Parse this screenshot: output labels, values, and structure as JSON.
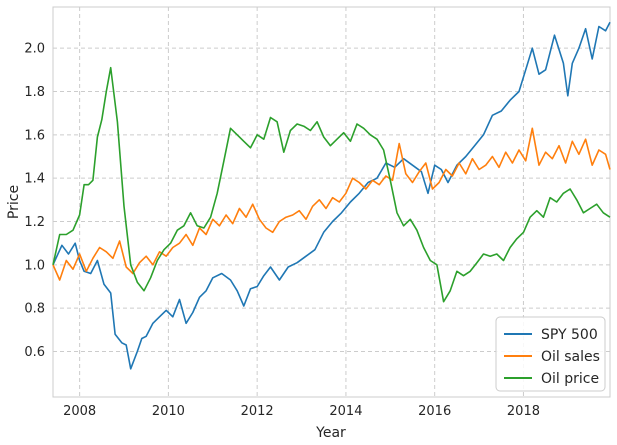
{
  "chart_data": {
    "type": "line",
    "title": "",
    "xlabel": "Year",
    "ylabel": "Price",
    "xlim": [
      2007.4,
      2019.95
    ],
    "ylim": [
      0.39,
      2.19
    ],
    "xticks": [
      2008,
      2010,
      2012,
      2014,
      2016,
      2018
    ],
    "xtick_labels": [
      "2008",
      "2010",
      "2012",
      "2014",
      "2016",
      "2018"
    ],
    "yticks": [
      0.6,
      0.8,
      1.0,
      1.2,
      1.4,
      1.6,
      1.8,
      2.0
    ],
    "ytick_labels": [
      "0.6",
      "0.8",
      "1.0",
      "1.2",
      "1.4",
      "1.6",
      "1.8",
      "2.0"
    ],
    "grid": true,
    "legend_position": "bottom-right",
    "series": [
      {
        "name": "SPY 500",
        "color": "#1f77b4",
        "x": [
          2007.4,
          2007.6,
          2007.75,
          2007.9,
          2008.0,
          2008.1,
          2008.25,
          2008.4,
          2008.55,
          2008.7,
          2008.8,
          2008.95,
          2009.05,
          2009.15,
          2009.3,
          2009.4,
          2009.5,
          2009.65,
          2009.8,
          2009.95,
          2010.1,
          2010.25,
          2010.4,
          2010.55,
          2010.7,
          2010.85,
          2011.0,
          2011.2,
          2011.4,
          2011.55,
          2011.7,
          2011.85,
          2012.0,
          2012.15,
          2012.3,
          2012.5,
          2012.7,
          2012.9,
          2013.1,
          2013.3,
          2013.5,
          2013.7,
          2013.9,
          2014.1,
          2014.3,
          2014.5,
          2014.7,
          2014.9,
          2015.1,
          2015.3,
          2015.5,
          2015.7,
          2015.85,
          2016.0,
          2016.15,
          2016.3,
          2016.5,
          2016.7,
          2016.9,
          2017.1,
          2017.3,
          2017.5,
          2017.7,
          2017.9,
          2018.05,
          2018.2,
          2018.35,
          2018.5,
          2018.7,
          2018.9,
          2019.0,
          2019.1,
          2019.25,
          2019.4,
          2019.55,
          2019.7,
          2019.85,
          2019.95
        ],
        "values": [
          1.0,
          1.09,
          1.05,
          1.1,
          1.02,
          0.97,
          0.96,
          1.02,
          0.91,
          0.87,
          0.68,
          0.64,
          0.63,
          0.52,
          0.6,
          0.66,
          0.67,
          0.73,
          0.76,
          0.79,
          0.76,
          0.84,
          0.73,
          0.78,
          0.85,
          0.88,
          0.94,
          0.96,
          0.93,
          0.88,
          0.81,
          0.89,
          0.9,
          0.95,
          0.99,
          0.93,
          0.99,
          1.01,
          1.04,
          1.07,
          1.15,
          1.2,
          1.24,
          1.29,
          1.33,
          1.38,
          1.4,
          1.47,
          1.45,
          1.49,
          1.46,
          1.43,
          1.33,
          1.46,
          1.44,
          1.38,
          1.46,
          1.5,
          1.55,
          1.6,
          1.69,
          1.71,
          1.76,
          1.8,
          1.9,
          2.0,
          1.88,
          1.9,
          2.06,
          1.93,
          1.78,
          1.93,
          2.0,
          2.09,
          1.95,
          2.1,
          2.08,
          2.12
        ]
      },
      {
        "name": "Oil sales",
        "color": "#ff7f0e",
        "x": [
          2007.4,
          2007.55,
          2007.7,
          2007.85,
          2008.0,
          2008.15,
          2008.3,
          2008.45,
          2008.6,
          2008.75,
          2008.9,
          2009.05,
          2009.2,
          2009.35,
          2009.5,
          2009.65,
          2009.8,
          2009.95,
          2010.1,
          2010.25,
          2010.4,
          2010.55,
          2010.7,
          2010.85,
          2011.0,
          2011.15,
          2011.3,
          2011.45,
          2011.6,
          2011.75,
          2011.9,
          2012.05,
          2012.2,
          2012.35,
          2012.5,
          2012.65,
          2012.8,
          2012.95,
          2013.1,
          2013.25,
          2013.4,
          2013.55,
          2013.7,
          2013.85,
          2014.0,
          2014.15,
          2014.3,
          2014.45,
          2014.6,
          2014.75,
          2014.9,
          2015.05,
          2015.2,
          2015.35,
          2015.5,
          2015.65,
          2015.8,
          2015.95,
          2016.1,
          2016.25,
          2016.4,
          2016.55,
          2016.7,
          2016.85,
          2017.0,
          2017.15,
          2017.3,
          2017.45,
          2017.6,
          2017.75,
          2017.9,
          2018.05,
          2018.2,
          2018.35,
          2018.5,
          2018.65,
          2018.8,
          2018.95,
          2019.1,
          2019.25,
          2019.4,
          2019.55,
          2019.7,
          2019.85,
          2019.95
        ],
        "values": [
          1.0,
          0.93,
          1.02,
          0.98,
          1.05,
          0.97,
          1.03,
          1.08,
          1.06,
          1.03,
          1.11,
          0.99,
          0.96,
          1.01,
          1.04,
          1.0,
          1.06,
          1.04,
          1.08,
          1.1,
          1.14,
          1.09,
          1.17,
          1.14,
          1.21,
          1.18,
          1.23,
          1.19,
          1.26,
          1.22,
          1.28,
          1.21,
          1.17,
          1.15,
          1.2,
          1.22,
          1.23,
          1.25,
          1.21,
          1.27,
          1.3,
          1.26,
          1.31,
          1.29,
          1.33,
          1.4,
          1.38,
          1.35,
          1.39,
          1.37,
          1.41,
          1.39,
          1.56,
          1.42,
          1.38,
          1.43,
          1.47,
          1.35,
          1.38,
          1.44,
          1.41,
          1.47,
          1.42,
          1.49,
          1.44,
          1.46,
          1.5,
          1.45,
          1.52,
          1.47,
          1.53,
          1.48,
          1.63,
          1.46,
          1.52,
          1.49,
          1.55,
          1.47,
          1.57,
          1.51,
          1.58,
          1.46,
          1.53,
          1.51,
          1.44
        ]
      },
      {
        "name": "Oil price",
        "color": "#2ca02c",
        "x": [
          2007.4,
          2007.55,
          2007.7,
          2007.85,
          2008.0,
          2008.1,
          2008.2,
          2008.3,
          2008.4,
          2008.5,
          2008.6,
          2008.7,
          2008.85,
          2009.0,
          2009.15,
          2009.3,
          2009.45,
          2009.6,
          2009.75,
          2009.9,
          2010.05,
          2010.2,
          2010.35,
          2010.5,
          2010.65,
          2010.8,
          2010.95,
          2011.1,
          2011.25,
          2011.4,
          2011.55,
          2011.7,
          2011.85,
          2012.0,
          2012.15,
          2012.3,
          2012.45,
          2012.6,
          2012.75,
          2012.9,
          2013.05,
          2013.2,
          2013.35,
          2013.5,
          2013.65,
          2013.8,
          2013.95,
          2014.1,
          2014.25,
          2014.4,
          2014.55,
          2014.7,
          2014.85,
          2015.0,
          2015.15,
          2015.3,
          2015.45,
          2015.6,
          2015.75,
          2015.9,
          2016.05,
          2016.2,
          2016.35,
          2016.5,
          2016.65,
          2016.8,
          2016.95,
          2017.1,
          2017.25,
          2017.4,
          2017.55,
          2017.7,
          2017.85,
          2018.0,
          2018.15,
          2018.3,
          2018.45,
          2018.6,
          2018.75,
          2018.9,
          2019.05,
          2019.2,
          2019.35,
          2019.5,
          2019.65,
          2019.8,
          2019.95
        ],
        "values": [
          1.0,
          1.14,
          1.14,
          1.16,
          1.23,
          1.37,
          1.37,
          1.39,
          1.59,
          1.67,
          1.8,
          1.91,
          1.66,
          1.27,
          1.0,
          0.92,
          0.88,
          0.94,
          1.02,
          1.07,
          1.1,
          1.16,
          1.18,
          1.24,
          1.18,
          1.17,
          1.22,
          1.33,
          1.48,
          1.63,
          1.6,
          1.57,
          1.54,
          1.6,
          1.58,
          1.68,
          1.66,
          1.52,
          1.62,
          1.65,
          1.64,
          1.62,
          1.66,
          1.59,
          1.55,
          1.58,
          1.61,
          1.57,
          1.65,
          1.63,
          1.6,
          1.58,
          1.53,
          1.39,
          1.24,
          1.18,
          1.21,
          1.16,
          1.08,
          1.02,
          1.0,
          0.83,
          0.88,
          0.97,
          0.95,
          0.97,
          1.01,
          1.05,
          1.04,
          1.05,
          1.02,
          1.08,
          1.12,
          1.15,
          1.22,
          1.25,
          1.22,
          1.31,
          1.29,
          1.33,
          1.35,
          1.3,
          1.24,
          1.26,
          1.28,
          1.24,
          1.22
        ]
      }
    ]
  }
}
